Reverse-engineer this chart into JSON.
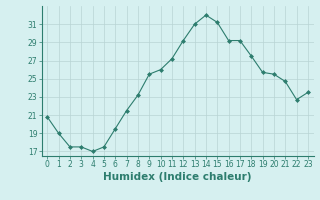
{
  "x": [
    0,
    1,
    2,
    3,
    4,
    5,
    6,
    7,
    8,
    9,
    10,
    11,
    12,
    13,
    14,
    15,
    16,
    17,
    18,
    19,
    20,
    21,
    22,
    23
  ],
  "y": [
    20.8,
    19.0,
    17.5,
    17.5,
    17.0,
    17.5,
    19.5,
    21.5,
    23.2,
    25.5,
    26.0,
    27.2,
    29.2,
    31.0,
    32.0,
    31.2,
    29.2,
    29.2,
    27.5,
    25.7,
    25.5,
    24.7,
    22.7,
    23.5
  ],
  "line_color": "#2d7d6e",
  "marker": "D",
  "marker_size": 2.0,
  "bg_color": "#d6f0f0",
  "grid_color": "#b8d4d4",
  "xlabel": "Humidex (Indice chaleur)",
  "xlabel_fontsize": 7.5,
  "tick_fontsize": 5.5,
  "ylim": [
    16.5,
    33.0
  ],
  "xlim": [
    -0.5,
    23.5
  ],
  "yticks": [
    17,
    19,
    21,
    23,
    25,
    27,
    29,
    31
  ],
  "xticks": [
    0,
    1,
    2,
    3,
    4,
    5,
    6,
    7,
    8,
    9,
    10,
    11,
    12,
    13,
    14,
    15,
    16,
    17,
    18,
    19,
    20,
    21,
    22,
    23
  ]
}
